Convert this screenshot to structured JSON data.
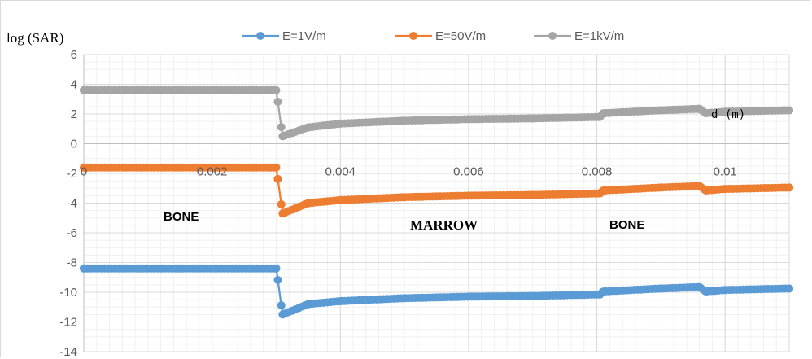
{
  "chart_data": {
    "type": "line",
    "ylabel": "log (SAR)",
    "xlabel": "d (m)",
    "xlim": [
      0,
      0.011
    ],
    "ylim": [
      -14,
      6
    ],
    "x_ticks": [
      "0",
      "0.002",
      "0.004",
      "0.006",
      "0.008",
      "0.01"
    ],
    "y_ticks": [
      "6",
      "4",
      "2",
      "0",
      "-2",
      "-4",
      "-6",
      "-8",
      "-10",
      "-12",
      "-14"
    ],
    "grid": true,
    "legend_position": "top",
    "annotations": [
      "BONE",
      "MARROW",
      "BONE"
    ],
    "series": [
      {
        "name": "E=1V/m",
        "color": "#5b9bd5",
        "points": [
          [
            0,
            -8.4
          ],
          [
            0.003,
            -8.4
          ],
          [
            0.0031,
            -11.5
          ],
          [
            0.0035,
            -10.8
          ],
          [
            0.004,
            -10.6
          ],
          [
            0.005,
            -10.4
          ],
          [
            0.006,
            -10.3
          ],
          [
            0.007,
            -10.25
          ],
          [
            0.00805,
            -10.15
          ],
          [
            0.0081,
            -9.95
          ],
          [
            0.009,
            -9.75
          ],
          [
            0.0096,
            -9.65
          ],
          [
            0.0097,
            -9.95
          ],
          [
            0.01,
            -9.85
          ],
          [
            0.011,
            -9.75
          ]
        ]
      },
      {
        "name": "E=50V/m",
        "color": "#ed7d31",
        "points": [
          [
            0,
            -1.6
          ],
          [
            0.003,
            -1.6
          ],
          [
            0.0031,
            -4.7
          ],
          [
            0.0035,
            -4.0
          ],
          [
            0.004,
            -3.8
          ],
          [
            0.005,
            -3.6
          ],
          [
            0.006,
            -3.5
          ],
          [
            0.007,
            -3.45
          ],
          [
            0.00805,
            -3.35
          ],
          [
            0.0081,
            -3.15
          ],
          [
            0.009,
            -2.95
          ],
          [
            0.0096,
            -2.85
          ],
          [
            0.0097,
            -3.15
          ],
          [
            0.01,
            -3.05
          ],
          [
            0.011,
            -2.95
          ]
        ]
      },
      {
        "name": "E=1kV/m",
        "color": "#a5a5a5",
        "points": [
          [
            0,
            3.6
          ],
          [
            0.003,
            3.6
          ],
          [
            0.0031,
            0.5
          ],
          [
            0.0035,
            1.1
          ],
          [
            0.004,
            1.35
          ],
          [
            0.005,
            1.55
          ],
          [
            0.006,
            1.65
          ],
          [
            0.007,
            1.7
          ],
          [
            0.00805,
            1.8
          ],
          [
            0.0081,
            2.05
          ],
          [
            0.009,
            2.25
          ],
          [
            0.0096,
            2.35
          ],
          [
            0.0097,
            2.05
          ],
          [
            0.01,
            2.15
          ],
          [
            0.011,
            2.25
          ]
        ]
      }
    ]
  }
}
